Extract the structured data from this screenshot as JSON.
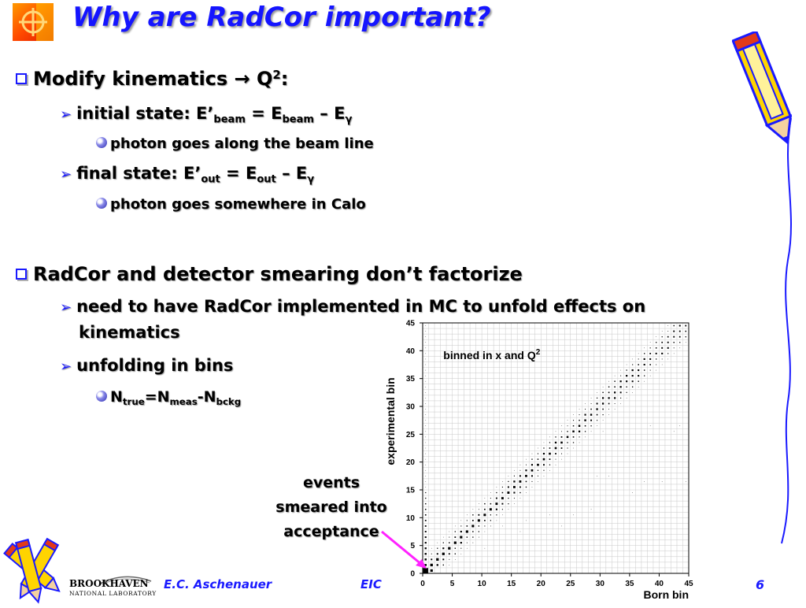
{
  "slide": {
    "title": "Why are RadCor important?",
    "page_number": "6"
  },
  "bullets": {
    "b1": {
      "text": "Modify kinematics",
      "arrow": "→",
      "q": "Q",
      "q_sup": "2",
      "colon": ":"
    },
    "b1_1": {
      "p1": "initial state: E’",
      "s1": "beam",
      "p2": " = E",
      "s2": "beam",
      "p3": " – E",
      "s3": "γ"
    },
    "b1_1_1": "photon goes along the beam line",
    "b1_2": {
      "p1": "final state: E’",
      "s1": "out",
      "p2": " = E",
      "s2": "out",
      "p3": " – E",
      "s3": "γ"
    },
    "b1_2_1": "photon goes somewhere in Calo",
    "b2": "RadCor and detector smearing don’t factorize",
    "b2_1_line1": "need to have RadCor implemented in MC to unfold effects on",
    "b2_1_line2": "kinematics",
    "b2_2": "unfolding in bins",
    "b2_2_1": {
      "p1": "N",
      "s1": "true",
      "p2": "=N",
      "s2": "meas",
      "p3": "-N",
      "s3": "bckg"
    }
  },
  "annotation": {
    "line1": "events",
    "line2": "smeared into",
    "line3": "acceptance"
  },
  "footer": {
    "author": "E.C. Aschenauer",
    "center": "EIC",
    "lab_main": "BROOKHAVEN",
    "lab_sub": "NATIONAL LABORATORY"
  },
  "chart_data": {
    "type": "scatter",
    "title": "",
    "annotation": "binned in x and Q",
    "annotation_sup": "2",
    "xlabel": "Born bin",
    "ylabel": "experimental bin",
    "xlim": [
      0,
      45
    ],
    "ylim": [
      0,
      45
    ],
    "xticks": [
      0,
      5,
      10,
      15,
      20,
      25,
      30,
      35,
      40,
      45
    ],
    "yticks": [
      0,
      5,
      10,
      15,
      20,
      25,
      30,
      35,
      40,
      45
    ],
    "grid": true,
    "marker": "square",
    "diagonal": {
      "from": 1,
      "to": 45,
      "max_marker_units": 0.5
    },
    "first_column": {
      "x": 0,
      "from": 1,
      "to": 45
    }
  },
  "colors": {
    "title": "#1515ff",
    "bullet": "#1a1aff",
    "arrow": "#ff22ff",
    "pencil_yellow": "#ffd400",
    "pencil_blue": "#1a3cff",
    "pencil_red": "#e23a1a"
  }
}
